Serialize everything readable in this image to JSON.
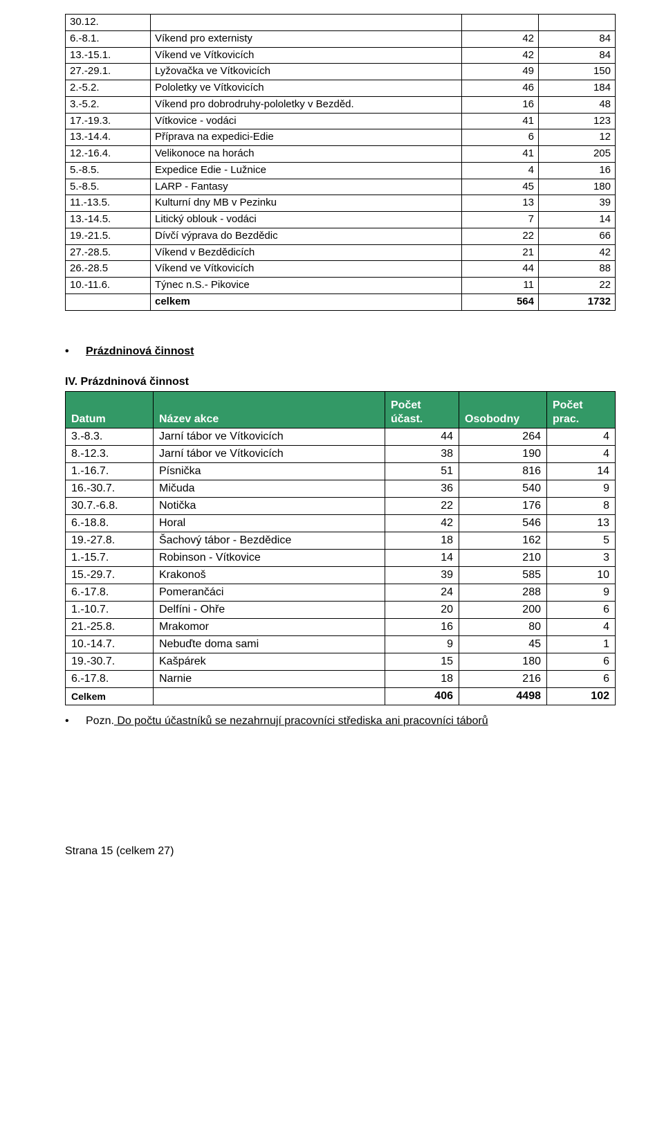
{
  "table1_rows": [
    {
      "date": "30.12.",
      "name": "",
      "n1": "",
      "n2": ""
    },
    {
      "date": "6.-8.1.",
      "name": "Víkend pro externisty",
      "n1": "42",
      "n2": "84"
    },
    {
      "date": "13.-15.1.",
      "name": "Víkend ve Vítkovicích",
      "n1": "42",
      "n2": "84"
    },
    {
      "date": "27.-29.1.",
      "name": "Lyžovačka ve Vítkovicích",
      "n1": "49",
      "n2": "150"
    },
    {
      "date": "2.-5.2.",
      "name": "Pololetky ve Vítkovicích",
      "n1": "46",
      "n2": "184"
    },
    {
      "date": "3.-5.2.",
      "name": "Víkend pro dobrodruhy-pololetky v Bezděd.",
      "n1": "16",
      "n2": "48"
    },
    {
      "date": "17.-19.3.",
      "name": "Vítkovice - vodáci",
      "n1": "41",
      "n2": "123"
    },
    {
      "date": "13.-14.4.",
      "name": "Příprava na expedici-Edie",
      "n1": "6",
      "n2": "12"
    },
    {
      "date": "12.-16.4.",
      "name": "Velikonoce na horách",
      "n1": "41",
      "n2": "205"
    },
    {
      "date": "5.-8.5.",
      "name": "Expedice Edie - Lužnice",
      "n1": "4",
      "n2": "16"
    },
    {
      "date": "5.-8.5.",
      "name": "LARP - Fantasy",
      "n1": "45",
      "n2": "180"
    },
    {
      "date": "11.-13.5.",
      "name": "Kulturní dny MB v Pezinku",
      "n1": "13",
      "n2": "39"
    },
    {
      "date": "13.-14.5.",
      "name": "Litický oblouk - vodáci",
      "n1": "7",
      "n2": "14"
    },
    {
      "date": "19.-21.5.",
      "name": "Dívčí výprava do Bezdědic",
      "n1": "22",
      "n2": "66"
    },
    {
      "date": "27.-28.5.",
      "name": "Víkend v Bezdědicích",
      "n1": "21",
      "n2": "42"
    },
    {
      "date": "26.-28.5",
      "name": "Víkend ve Vítkovicích",
      "n1": "44",
      "n2": "88"
    },
    {
      "date": "10.-11.6.",
      "name": "Týnec n.S.- Pikovice",
      "n1": "11",
      "n2": "22"
    }
  ],
  "table1_total": {
    "date": "",
    "name": "celkem",
    "n1": "564",
    "n2": "1732"
  },
  "section_title": "Prázdninová činnost",
  "subhead": "IV. Prázdninová činnost",
  "t2_header": {
    "c1": "Datum",
    "c2": "Název akce",
    "c3": "Počet účast.",
    "c4": "Osobodny",
    "c5": "Počet prac."
  },
  "t2_header_colors": {
    "bg": "#339966",
    "fg": "#ffffff"
  },
  "table2_rows": [
    {
      "date": "3.-8.3.",
      "name": "Jarní tábor ve Vítkovicích",
      "n1": "44",
      "n2": "264",
      "n3": "4"
    },
    {
      "date": "8.-12.3.",
      "name": "Jarní tábor ve Vítkovicích",
      "n1": "38",
      "n2": "190",
      "n3": "4"
    },
    {
      "date": "1.-16.7.",
      "name": "Písnička",
      "n1": "51",
      "n2": "816",
      "n3": "14"
    },
    {
      "date": "16.-30.7.",
      "name": "Mičuda",
      "n1": "36",
      "n2": "540",
      "n3": "9"
    },
    {
      "date": "30.7.-6.8.",
      "name": "Notička",
      "n1": "22",
      "n2": "176",
      "n3": "8"
    },
    {
      "date": "6.-18.8.",
      "name": "Horal",
      "n1": "42",
      "n2": "546",
      "n3": "13"
    },
    {
      "date": "19.-27.8.",
      "name": "Šachový tábor - Bezdědice",
      "n1": "18",
      "n2": "162",
      "n3": "5"
    },
    {
      "date": "1.-15.7.",
      "name": "Robinson - Vítkovice",
      "n1": "14",
      "n2": "210",
      "n3": "3"
    },
    {
      "date": "15.-29.7.",
      "name": "Krakonoš",
      "n1": "39",
      "n2": "585",
      "n3": "10"
    },
    {
      "date": "6.-17.8.",
      "name": "Pomerančáci",
      "n1": "24",
      "n2": "288",
      "n3": "9"
    },
    {
      "date": "1.-10.7.",
      "name": "Delfíni - Ohře",
      "n1": "20",
      "n2": "200",
      "n3": "6"
    },
    {
      "date": "21.-25.8.",
      "name": "Mrakomor",
      "n1": "16",
      "n2": "80",
      "n3": "4"
    },
    {
      "date": "10.-14.7.",
      "name": "Nebuďte doma sami",
      "n1": "9",
      "n2": "45",
      "n3": "1"
    },
    {
      "date": "19.-30.7.",
      "name": "Kašpárek",
      "n1": "15",
      "n2": "180",
      "n3": "6"
    },
    {
      "date": "6.-17.8.",
      "name": "Narnie",
      "n1": "18",
      "n2": "216",
      "n3": "6"
    }
  ],
  "table2_total": {
    "date": "Celkem",
    "name": "",
    "n1": "406",
    "n2": "4498",
    "n3": "102"
  },
  "note_prefix": "Pozn.",
  "note_underlined": " Do počtu účastníků se nezahrnují pracovníci střediska ani pracovníci táborů",
  "footer": "Strana 15 (celkem 27)"
}
